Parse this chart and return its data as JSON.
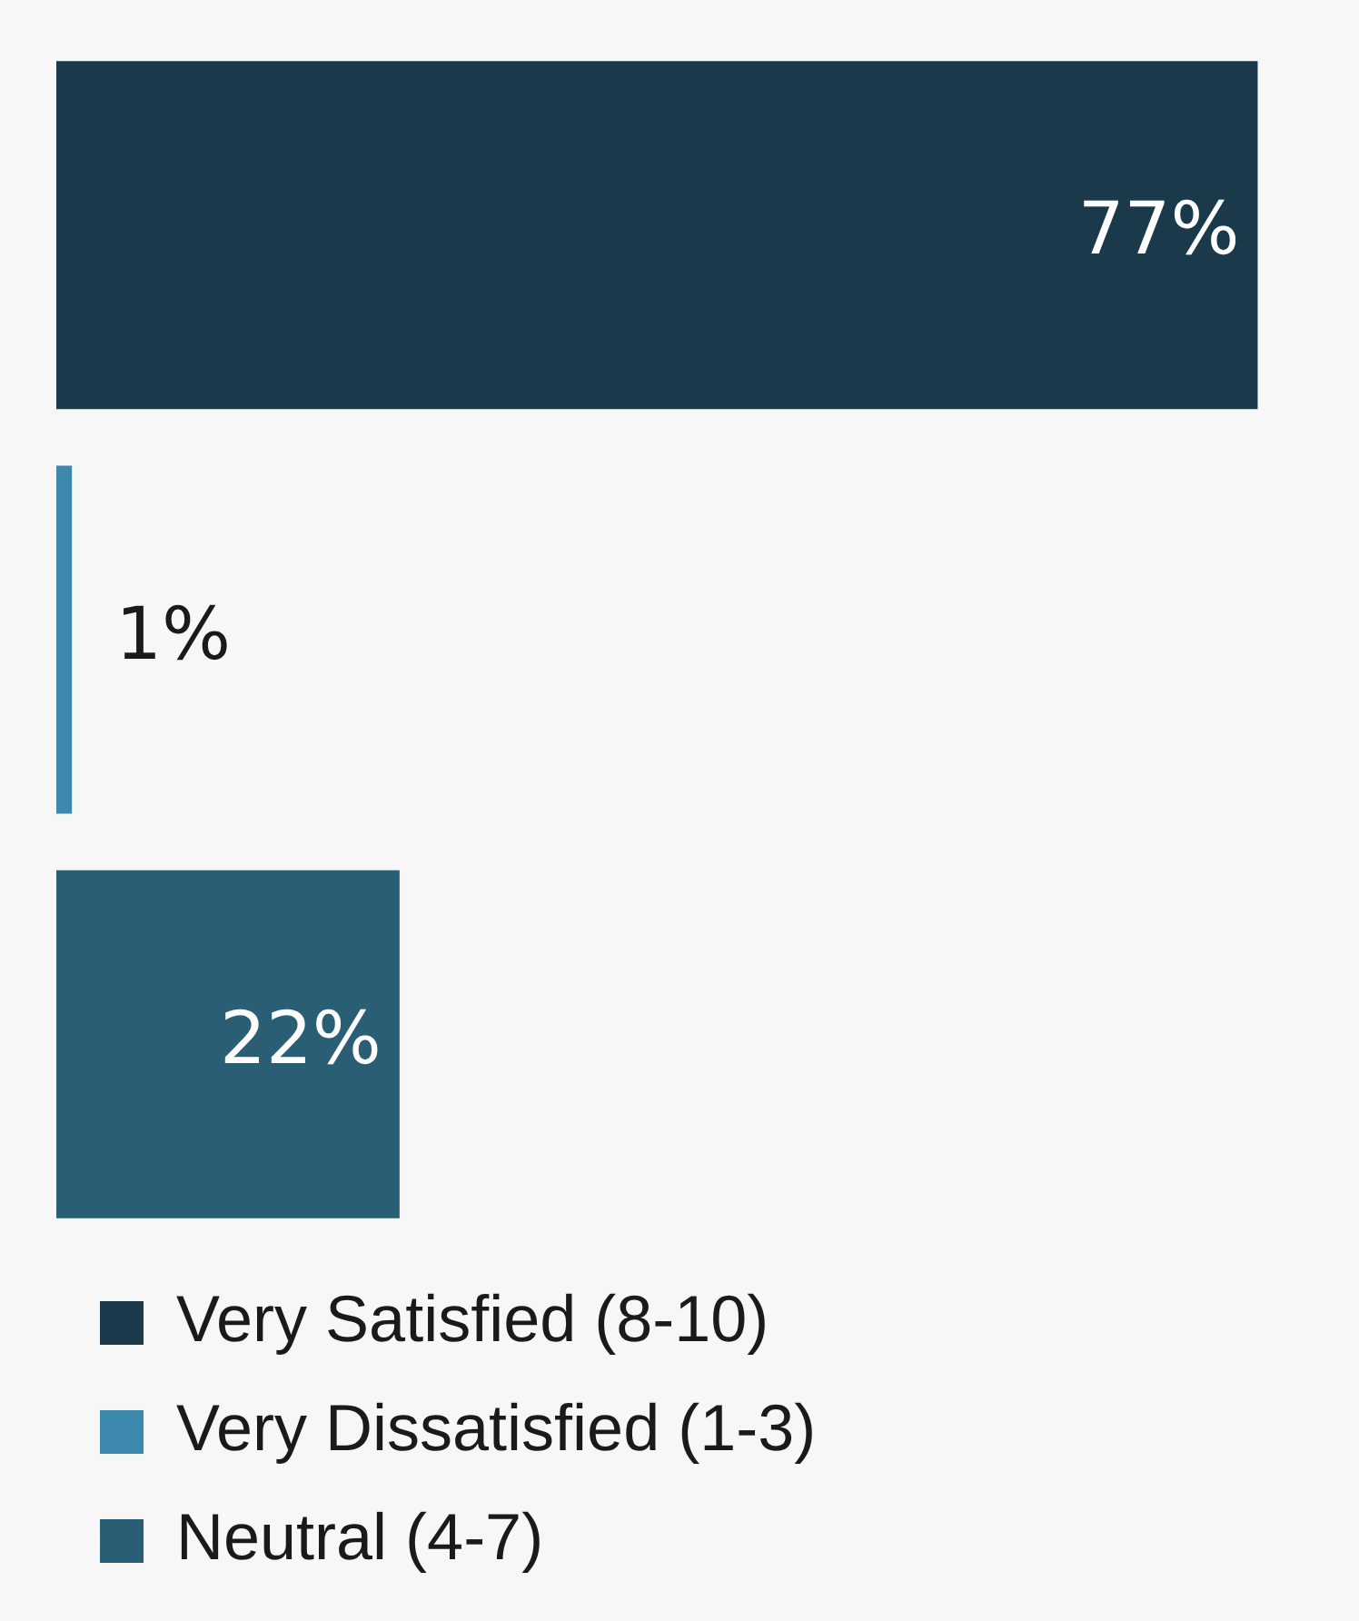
{
  "chart_data": {
    "type": "bar",
    "orientation": "horizontal",
    "categories": [
      null
    ],
    "series": [
      {
        "name": "Very Satisfied (8-10)",
        "color": "#1a3a4c",
        "values": [
          77
        ],
        "value_labels": [
          "77%"
        ]
      },
      {
        "name": "Very Dissatisfied (1-3)",
        "color": "#3d88ad",
        "values": [
          1
        ],
        "value_labels": [
          "1%"
        ]
      },
      {
        "name": "Neutral (4-7)",
        "color": "#2a5e75",
        "values": [
          22
        ],
        "value_labels": [
          "22%"
        ]
      }
    ],
    "legend": "bottom",
    "tick_labels": false,
    "grid": false
  }
}
